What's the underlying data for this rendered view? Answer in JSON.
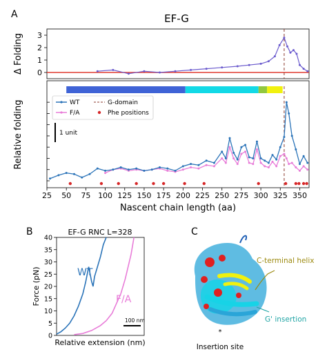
{
  "panel_labels": [
    "A",
    "B",
    "C"
  ],
  "colors": {
    "wt": "#2a73b8",
    "fa": "#e87cd8",
    "baseline": "#e03c31",
    "gdomain": "#8b3a2e",
    "phe": "#d62728",
    "domain_blue": "#3f63d6",
    "domain_cyan": "#12d9e6",
    "domain_green": "#92c83e",
    "domain_yellow": "#f1f10e"
  },
  "chart_data": [
    {
      "type": "line",
      "panel": "A-top",
      "title": "EF-G",
      "ylabel": "Δ Folding",
      "ylim": [
        -0.5,
        3.5
      ],
      "yticks": [
        0,
        1,
        2,
        3
      ],
      "xlim": [
        25,
        362
      ],
      "reference_line": 0,
      "g_domain_x": 330,
      "series": [
        {
          "x": [
            90,
            110,
            130,
            150,
            170,
            190,
            210,
            230,
            250,
            270,
            285,
            300,
            310,
            318,
            324,
            330,
            334,
            338,
            342,
            346,
            350,
            355,
            360
          ],
          "values": [
            0.1,
            0.2,
            -0.1,
            0.1,
            0.0,
            0.1,
            0.2,
            0.3,
            0.4,
            0.5,
            0.6,
            0.7,
            0.9,
            1.3,
            2.2,
            2.8,
            2.1,
            1.6,
            1.8,
            1.5,
            0.6,
            0.3,
            0.1
          ]
        }
      ]
    },
    {
      "type": "line",
      "panel": "A-bottom",
      "ylabel": "Relative folding",
      "xlabel": "Nascent chain length (aa)",
      "xlim": [
        25,
        362
      ],
      "xticks": [
        25,
        50,
        75,
        100,
        125,
        150,
        175,
        200,
        225,
        250,
        275,
        300,
        325,
        350
      ],
      "scale_label": "1 unit",
      "domain_bar": [
        {
          "from": 50,
          "to": 203,
          "color": "domain_blue"
        },
        {
          "from": 203,
          "to": 297,
          "color": "domain_cyan"
        },
        {
          "from": 297,
          "to": 308,
          "color": "domain_green"
        },
        {
          "from": 308,
          "to": 328,
          "color": "domain_yellow"
        }
      ],
      "legend": [
        "WT",
        "F/A",
        "G-domain",
        "Phe positions"
      ],
      "g_domain_x": 330,
      "phe_positions": [
        55,
        95,
        117,
        140,
        162,
        175,
        202,
        227,
        297,
        332,
        345,
        349,
        355,
        359
      ],
      "series": [
        {
          "name": "WT",
          "x": [
            29,
            40,
            50,
            60,
            70,
            80,
            90,
            100,
            110,
            120,
            130,
            140,
            150,
            160,
            170,
            180,
            190,
            200,
            210,
            220,
            230,
            240,
            250,
            255,
            260,
            265,
            270,
            275,
            280,
            285,
            290,
            295,
            300,
            305,
            310,
            315,
            320,
            325,
            330,
            333,
            336,
            340,
            345,
            350,
            355,
            360
          ],
          "values": [
            0.2,
            0.5,
            0.7,
            0.6,
            0.3,
            0.6,
            1.1,
            0.9,
            1.0,
            1.2,
            1.0,
            1.1,
            0.9,
            1.0,
            1.2,
            1.1,
            0.9,
            1.3,
            1.5,
            1.4,
            1.8,
            1.6,
            2.6,
            2.0,
            3.8,
            2.5,
            1.9,
            3.0,
            3.2,
            2.1,
            2.0,
            3.5,
            2.0,
            1.8,
            1.6,
            2.3,
            1.9,
            3.0,
            3.9,
            7.0,
            6.0,
            4.0,
            2.8,
            1.5,
            2.2,
            1.6
          ]
        },
        {
          "name": "F/A",
          "x": [
            100,
            110,
            120,
            130,
            140,
            150,
            160,
            170,
            180,
            190,
            200,
            210,
            220,
            230,
            240,
            250,
            255,
            260,
            265,
            270,
            275,
            280,
            285,
            290,
            295,
            300,
            305,
            310,
            315,
            320,
            325,
            330,
            333,
            336,
            340,
            345,
            350,
            355,
            360
          ],
          "values": [
            0.7,
            1.0,
            1.1,
            0.9,
            1.0,
            0.9,
            1.0,
            1.1,
            0.9,
            0.8,
            1.0,
            1.2,
            1.1,
            1.4,
            1.3,
            2.0,
            1.6,
            3.0,
            2.0,
            1.5,
            2.4,
            2.6,
            1.6,
            1.5,
            2.8,
            1.6,
            1.3,
            1.2,
            1.7,
            1.3,
            2.2,
            2.4,
            2.0,
            1.5,
            1.6,
            1.2,
            0.9,
            1.3,
            1.0
          ]
        }
      ]
    },
    {
      "type": "line",
      "panel": "B",
      "title": "EF-G RNC L=328",
      "ylabel": "Force (pN)",
      "xlabel": "Relative extension (nm)",
      "ylim": [
        0,
        40
      ],
      "yticks": [
        0,
        5,
        10,
        15,
        20,
        25,
        30,
        35,
        40
      ],
      "xlim": [
        0,
        300
      ],
      "scale_label": "100 nm",
      "series": [
        {
          "name": "WT",
          "x": [
            0,
            15,
            30,
            45,
            60,
            75,
            90,
            100,
            110,
            115,
            120,
            125,
            130,
            140,
            150,
            160,
            170
          ],
          "values": [
            0.5,
            1.5,
            3,
            5,
            8,
            12,
            17,
            22,
            28,
            25,
            22,
            20,
            24,
            28,
            32,
            37,
            40
          ]
        },
        {
          "name": "F/A",
          "x": [
            60,
            90,
            120,
            150,
            170,
            190,
            205,
            220,
            235,
            245,
            255,
            265
          ],
          "values": [
            0.3,
            0.8,
            2,
            4,
            6,
            9,
            13,
            17,
            23,
            28,
            33,
            40
          ]
        }
      ]
    }
  ],
  "panel_c": {
    "callouts": [
      "C-terminal helix",
      "G' insertion",
      "Insertion site"
    ]
  }
}
